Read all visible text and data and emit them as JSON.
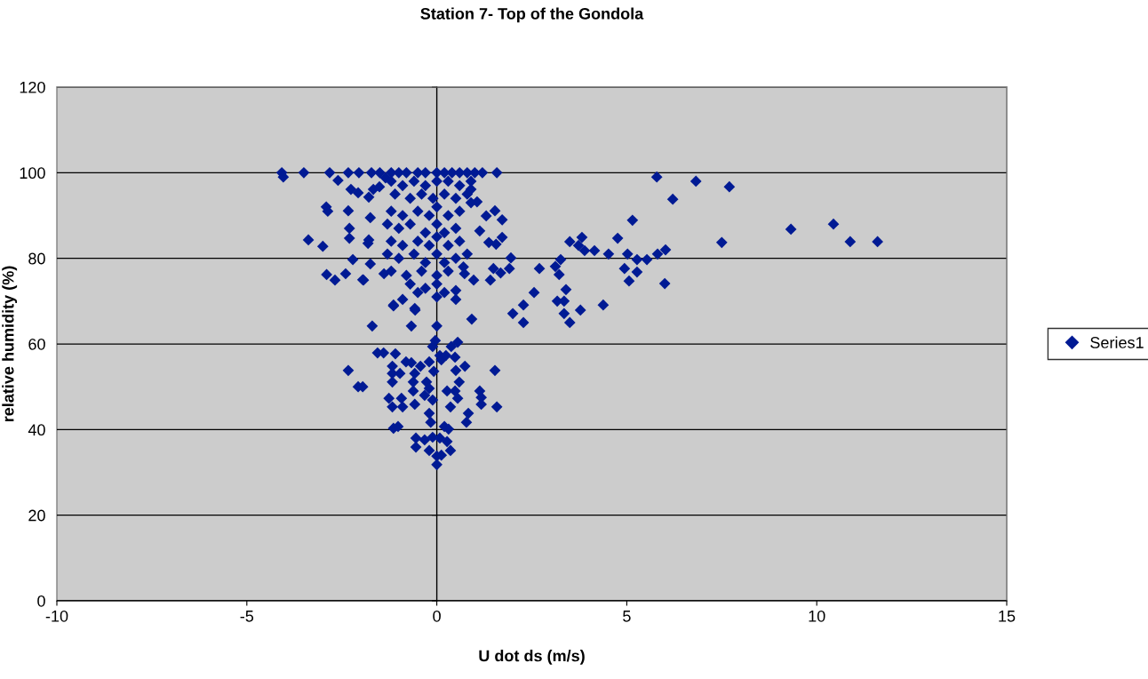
{
  "chart_data": {
    "type": "scatter",
    "title": "Station 7- Top of the Gondola",
    "xlabel": "U dot ds (m/s)",
    "ylabel": "relative humidity (%)",
    "xlim": [
      -10,
      15
    ],
    "xticks": [
      -10,
      -5,
      0,
      5,
      10,
      15
    ],
    "ylim": [
      0,
      120
    ],
    "yticks": [
      0,
      20,
      40,
      60,
      80,
      100,
      120
    ],
    "grid": "y",
    "legend": "right",
    "marker": "diamond",
    "series": [
      {
        "name": "Series1",
        "color": "#001a94",
        "x": [
          5.79,
          6.82,
          7.7,
          6.21,
          5.15,
          9.32,
          10.44,
          10.88,
          11.6,
          7.5,
          4.76,
          3.5,
          3.82,
          3.73,
          3.89,
          4.15,
          4.52,
          5.02,
          5.27,
          5.53,
          5.81,
          6.02,
          3.26,
          2.7,
          3.12,
          3.22,
          3.4,
          2.56,
          4.94,
          5.27,
          5.06,
          6.0,
          2.28,
          2.0,
          2.28,
          3.17,
          3.35,
          3.35,
          3.5,
          3.78,
          4.38,
          -4.08,
          -4.04,
          -3.5,
          -3.38,
          -3.0,
          -2.82,
          -2.91,
          -2.87,
          -2.9,
          -2.68,
          -2.6,
          -2.33,
          -2.33,
          -2.3,
          -2.3,
          -2.21,
          -2.26,
          -2.07,
          -2.05,
          -1.95,
          -1.81,
          -1.75,
          -1.79,
          -1.72,
          -1.67,
          -1.51,
          -1.35,
          -1.39,
          -1.75,
          -1.79,
          -2.4,
          -1.93,
          -1.7,
          -1.14,
          -0.57,
          -0.67,
          0.0,
          0.92,
          -2.33,
          -2.07,
          -1.95,
          -1.56,
          -1.4,
          -1.09,
          -1.17,
          -1.17,
          -0.97,
          -0.81,
          -0.67,
          -1.17,
          -1.26,
          -1.17,
          -0.93,
          -0.9,
          -0.58,
          -0.62,
          -0.62,
          -0.58,
          -0.43,
          -0.27,
          -0.32,
          -0.2,
          -0.04,
          -0.11,
          -0.2,
          -0.08,
          -0.11,
          -0.2,
          -0.16,
          0.08,
          0.12,
          0.24,
          0.38,
          0.55,
          0.48,
          0.5,
          0.74,
          0.27,
          0.48,
          0.55,
          0.36,
          0.59,
          1.13,
          1.17,
          1.17,
          0.83,
          0.78,
          1.53,
          1.58,
          -1.14,
          -1.02,
          -0.55,
          -0.55,
          -0.32,
          -0.11,
          0.08,
          0.2,
          0.31,
          -0.2,
          0.0,
          0.12,
          0.0,
          0.27,
          0.36,
          -1.5,
          -1.2,
          -1.0,
          -0.8,
          -0.5,
          -0.3,
          0.0,
          0.2,
          0.4,
          0.6,
          0.8,
          1.0,
          1.2,
          1.58,
          0.9,
          1.06,
          0.9,
          1.53,
          1.72,
          1.3,
          1.13,
          1.72,
          1.37,
          1.56,
          1.95,
          1.91,
          1.68,
          1.49,
          1.41,
          0.97,
          0.73,
          0.5,
          0.5,
          -0.9,
          -1.14,
          -0.58,
          -1.2,
          -0.9,
          -0.6,
          -0.3,
          0.0,
          0.3,
          0.6,
          0.9,
          -1.1,
          -0.7,
          -0.4,
          -0.1,
          0.2,
          0.5,
          0.8,
          -1.2,
          -0.9,
          -0.5,
          -0.2,
          0.0,
          0.3,
          0.6,
          -1.3,
          -1.0,
          -0.7,
          -0.3,
          0.0,
          0.2,
          0.5,
          -1.2,
          -0.9,
          -0.5,
          -0.2,
          0.0,
          0.3,
          0.6,
          -1.3,
          -1.0,
          -0.6,
          -0.3,
          0.0,
          0.2,
          0.5,
          0.8,
          -1.2,
          -0.8,
          -0.4,
          0.0,
          0.3,
          0.7,
          -0.7,
          -0.3,
          0.0,
          0.2,
          0.0,
          -0.5
        ],
        "values": [
          99.0,
          98.0,
          96.7,
          93.8,
          88.9,
          86.8,
          88.0,
          83.9,
          83.9,
          83.7,
          84.7,
          83.9,
          84.9,
          83.0,
          81.8,
          81.8,
          81.0,
          81.0,
          79.7,
          79.7,
          81.0,
          82.0,
          79.7,
          77.6,
          78.1,
          76.2,
          72.7,
          72.0,
          77.6,
          76.8,
          74.7,
          74.1,
          69.1,
          67.1,
          65.0,
          70.0,
          70.0,
          67.1,
          65.0,
          67.9,
          69.1,
          100,
          99,
          100,
          84.3,
          82.8,
          100,
          92,
          91,
          76.2,
          74.9,
          98.2,
          100,
          91.1,
          87,
          84.7,
          79.7,
          96.1,
          95.3,
          100,
          75,
          83.5,
          89.5,
          84.3,
          100,
          96.1,
          96.7,
          98.8,
          76.4,
          78.7,
          94.3,
          76.4,
          74.9,
          64.2,
          68.9,
          67.9,
          64.2,
          64.2,
          65.8,
          53.8,
          50,
          50,
          57.9,
          57.9,
          57.7,
          54.8,
          53.1,
          53.1,
          55.8,
          55.6,
          51.1,
          47.3,
          45.3,
          47.3,
          45.3,
          53.1,
          51.1,
          49,
          45.9,
          54.8,
          51.1,
          48,
          49.6,
          60.8,
          59.4,
          55.8,
          53.6,
          46.9,
          43.8,
          41.7,
          57.3,
          56.3,
          57.3,
          59.4,
          60.4,
          56.9,
          53.8,
          54.8,
          49,
          49,
          47.3,
          45.3,
          51.1,
          49,
          47.5,
          45.9,
          43.8,
          41.7,
          53.8,
          45.3,
          40.3,
          40.7,
          38,
          35.9,
          37.6,
          38.2,
          38,
          40.7,
          40.1,
          35.1,
          33.8,
          34,
          31.8,
          37.2,
          35.1,
          100,
          100,
          100,
          100,
          100,
          100,
          100,
          100,
          100,
          100,
          100,
          100,
          100,
          100,
          96.1,
          93.2,
          93,
          91.1,
          89,
          89.9,
          86.4,
          84.9,
          83.7,
          83.3,
          80.1,
          77.6,
          76.6,
          77.6,
          74.9,
          74.9,
          76.4,
          70.4,
          72.5,
          70.4,
          69.1,
          68.3,
          98,
          97,
          98,
          97,
          98,
          98,
          97,
          98,
          95,
          94,
          95,
          94,
          95,
          94,
          95,
          91,
          90,
          91,
          90,
          92,
          90,
          91,
          88,
          87,
          88,
          86,
          88,
          86,
          87,
          84,
          83,
          84,
          83,
          85,
          83,
          84,
          81,
          80,
          81,
          79,
          81,
          79,
          80,
          81,
          77,
          76,
          77,
          76,
          77,
          78,
          74,
          73,
          74,
          72,
          71,
          72
        ]
      }
    ]
  }
}
